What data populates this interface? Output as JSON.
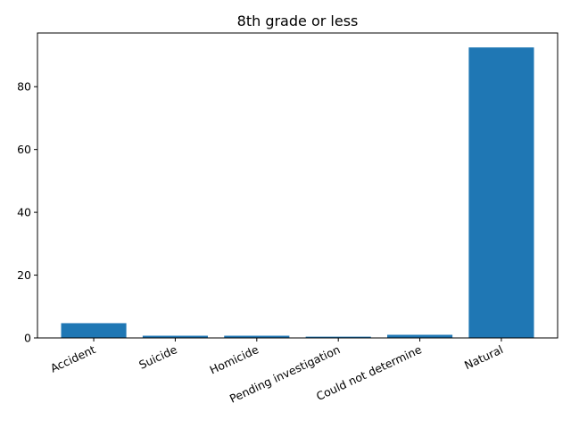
{
  "chart_data": {
    "type": "bar",
    "title": "8th grade or less",
    "xlabel": "",
    "ylabel": "",
    "categories": [
      "Accident",
      "Suicide",
      "Homicide",
      "Pending investigation",
      "Could not determine",
      "Natural"
    ],
    "values": [
      4.7,
      0.7,
      0.7,
      0.4,
      1.0,
      92.5
    ],
    "ylim": [
      0,
      97.1
    ],
    "yticks": [
      0,
      20,
      40,
      60,
      80
    ],
    "bar_color": "#1f77b4",
    "grid": false,
    "legend": "none"
  }
}
